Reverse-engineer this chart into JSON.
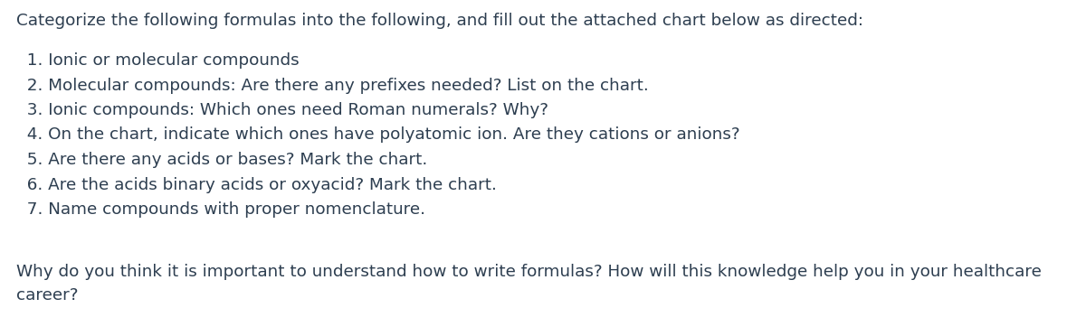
{
  "background_color": "#ffffff",
  "text_color": "#2d3e50",
  "title_text": "Categorize the following formulas into the following, and fill out the attached chart below as directed:",
  "items": [
    "  1. Ionic or molecular compounds",
    "  2. Molecular compounds: Are there any prefixes needed? List on the chart.",
    "  3. Ionic compounds: Which ones need Roman numerals? Why?",
    "  4. On the chart, indicate which ones have polyatomic ion. Are they cations or anions?",
    "  5. Are there any acids or bases? Mark the chart.",
    "  6. Are the acids binary acids or oxyacid? Mark the chart.",
    "  7. Name compounds with proper nomenclature."
  ],
  "footer_text": "Why do you think it is important to understand how to write formulas? How will this knowledge help you in your healthcare\ncareer?",
  "title_fontsize": 13.2,
  "item_fontsize": 13.2,
  "footer_fontsize": 13.2,
  "font_family": "DejaVu Sans"
}
